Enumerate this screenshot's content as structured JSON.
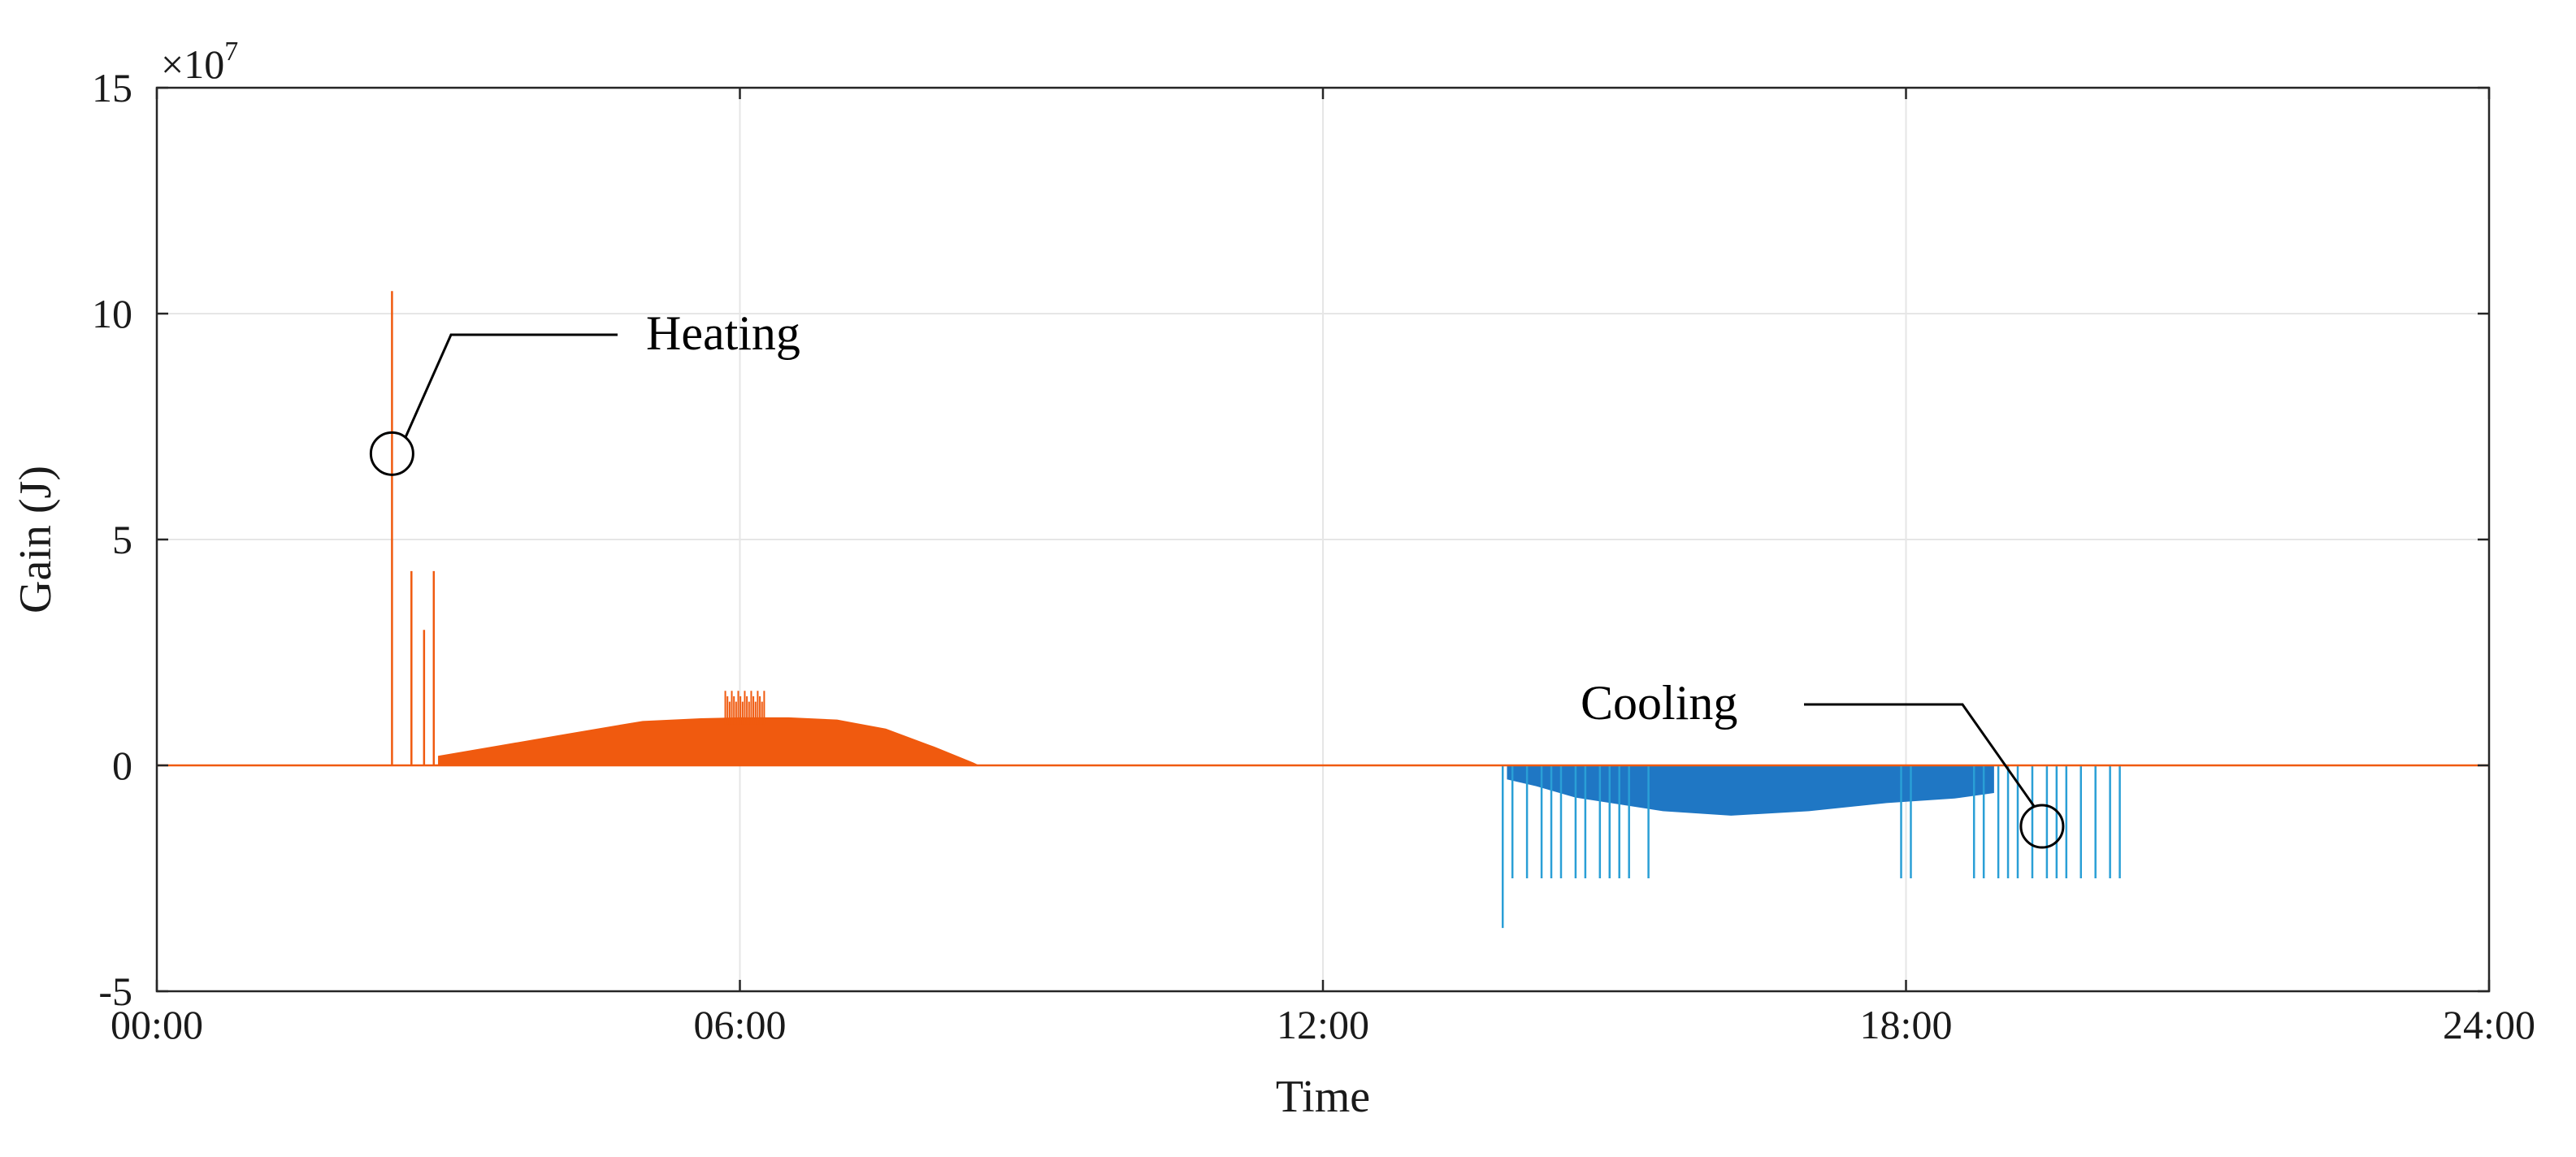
{
  "chart_data": {
    "type": "area",
    "title": "",
    "xlabel": "Time",
    "ylabel": "Gain (J)",
    "y_multiplier_label": "×10",
    "y_multiplier_exponent": "7",
    "xlim_hours": [
      0,
      24
    ],
    "ylim": [
      -5,
      15
    ],
    "x_ticks": [
      {
        "hour": 0,
        "label": "00:00"
      },
      {
        "hour": 6,
        "label": "06:00"
      },
      {
        "hour": 12,
        "label": "12:00"
      },
      {
        "hour": 18,
        "label": "18:00"
      },
      {
        "hour": 24,
        "label": "24:00"
      }
    ],
    "y_ticks": [
      {
        "value": -5,
        "label": "-5"
      },
      {
        "value": 0,
        "label": "0"
      },
      {
        "value": 5,
        "label": "5"
      },
      {
        "value": 10,
        "label": "10"
      },
      {
        "value": 15,
        "label": "15"
      }
    ],
    "grid": true,
    "colors": {
      "heating": "#f05a0f",
      "cooling": "#1f77c4",
      "spike_cooling": "#2a9fd6"
    },
    "series": [
      {
        "key": "heating",
        "points": [
          [
            2.9,
            0.2
          ],
          [
            3.5,
            0.42
          ],
          [
            4.2,
            0.68
          ],
          [
            5.0,
            0.97
          ],
          [
            5.6,
            1.03
          ],
          [
            6.0,
            1.05
          ],
          [
            6.5,
            1.05
          ],
          [
            7.0,
            1.0
          ],
          [
            7.5,
            0.8
          ],
          [
            8.0,
            0.4
          ],
          [
            8.4,
            0.05
          ],
          [
            8.45,
            0.0
          ]
        ],
        "spikes": [
          [
            2.42,
            10.5
          ],
          [
            2.62,
            4.3
          ],
          [
            2.75,
            3.0
          ],
          [
            2.85,
            4.3
          ]
        ],
        "jitter_range": [
          5.85,
          6.25
        ],
        "jitter_peak": 1.65
      },
      {
        "key": "cooling",
        "points": [
          [
            13.9,
            -0.3
          ],
          [
            14.2,
            -0.45
          ],
          [
            14.6,
            -0.7
          ],
          [
            15.5,
            -1.0
          ],
          [
            16.2,
            -1.1
          ],
          [
            17.0,
            -1.0
          ],
          [
            17.8,
            -0.82
          ],
          [
            18.5,
            -0.72
          ],
          [
            18.9,
            -0.6
          ]
        ],
        "spikes": [
          [
            13.85,
            -3.6
          ],
          [
            13.95,
            -2.5
          ],
          [
            14.1,
            -2.5
          ],
          [
            14.25,
            -2.5
          ],
          [
            14.35,
            -2.5
          ],
          [
            14.45,
            -2.5
          ],
          [
            14.6,
            -2.5
          ],
          [
            14.7,
            -2.5
          ],
          [
            14.85,
            -2.5
          ],
          [
            14.95,
            -2.5
          ],
          [
            15.05,
            -2.5
          ],
          [
            15.15,
            -2.5
          ],
          [
            15.35,
            -2.5
          ],
          [
            17.95,
            -2.5
          ],
          [
            18.05,
            -2.5
          ],
          [
            18.7,
            -2.5
          ],
          [
            18.8,
            -2.5
          ],
          [
            18.95,
            -2.5
          ],
          [
            19.05,
            -2.5
          ],
          [
            19.15,
            -2.5
          ],
          [
            19.3,
            -2.5
          ],
          [
            19.45,
            -2.5
          ],
          [
            19.55,
            -2.5
          ],
          [
            19.65,
            -2.5
          ],
          [
            19.8,
            -2.5
          ],
          [
            19.95,
            -2.5
          ],
          [
            20.1,
            -2.5
          ],
          [
            20.2,
            -2.5
          ]
        ]
      }
    ],
    "annotations": [
      {
        "text": "Heating",
        "anchor_hour": 2.42,
        "anchor_value": 6.9
      },
      {
        "text": "Cooling",
        "anchor_hour": 19.4,
        "anchor_value": -1.35
      }
    ]
  }
}
